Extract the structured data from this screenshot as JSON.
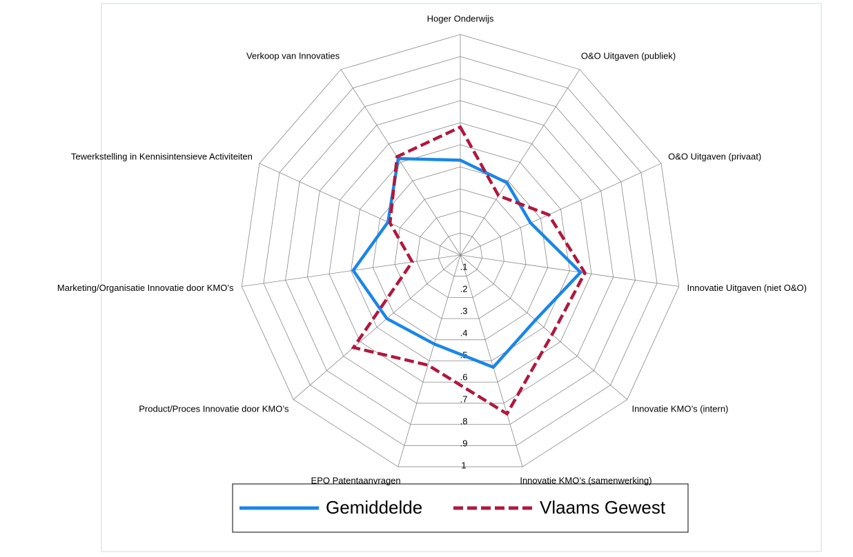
{
  "chart_data": {
    "type": "radar",
    "categories": [
      "Hoger Onderwijs",
      "O&O Uitgaven (publiek)",
      "O&O Uitgaven (privaat)",
      "Innovatie Uitgaven (niet O&O)",
      "Innovatie KMO’s (intern)",
      "Innovatie KMO’s (samenwerking)",
      "EPO Patentaanvragen",
      "Product/Proces Innovatie door KMO’s",
      "Marketing/Organisatie Innovatie door KMO’s",
      "Tewerkstelling in Kennisintensieve Activiteiten",
      "Verkoop van Innovaties"
    ],
    "series": [
      {
        "name": "Gemiddelde",
        "color": "#1a86e8",
        "values": [
          0.43,
          0.39,
          0.35,
          0.55,
          0.45,
          0.53,
          0.42,
          0.44,
          0.49,
          0.36,
          0.52
        ]
      },
      {
        "name": "Vlaams Gewest",
        "color": "#b0183e",
        "values": [
          0.58,
          0.32,
          0.44,
          0.57,
          0.55,
          0.75,
          0.52,
          0.64,
          0.22,
          0.35,
          0.53
        ]
      }
    ],
    "ylim": [
      0,
      1
    ],
    "yticks": [
      {
        "value": 0.1,
        "label": ".1"
      },
      {
        "value": 0.2,
        "label": ".2"
      },
      {
        "value": 0.3,
        "label": ".3"
      },
      {
        "value": 0.4,
        "label": ".4"
      },
      {
        "value": 0.5,
        "label": ".5"
      },
      {
        "value": 0.6,
        "label": ".6"
      },
      {
        "value": 0.7,
        "label": ".7"
      },
      {
        "value": 0.8,
        "label": ".8"
      },
      {
        "value": 0.9,
        "label": ".9"
      },
      1
    ],
    "grid": true,
    "legend": "bottom"
  }
}
